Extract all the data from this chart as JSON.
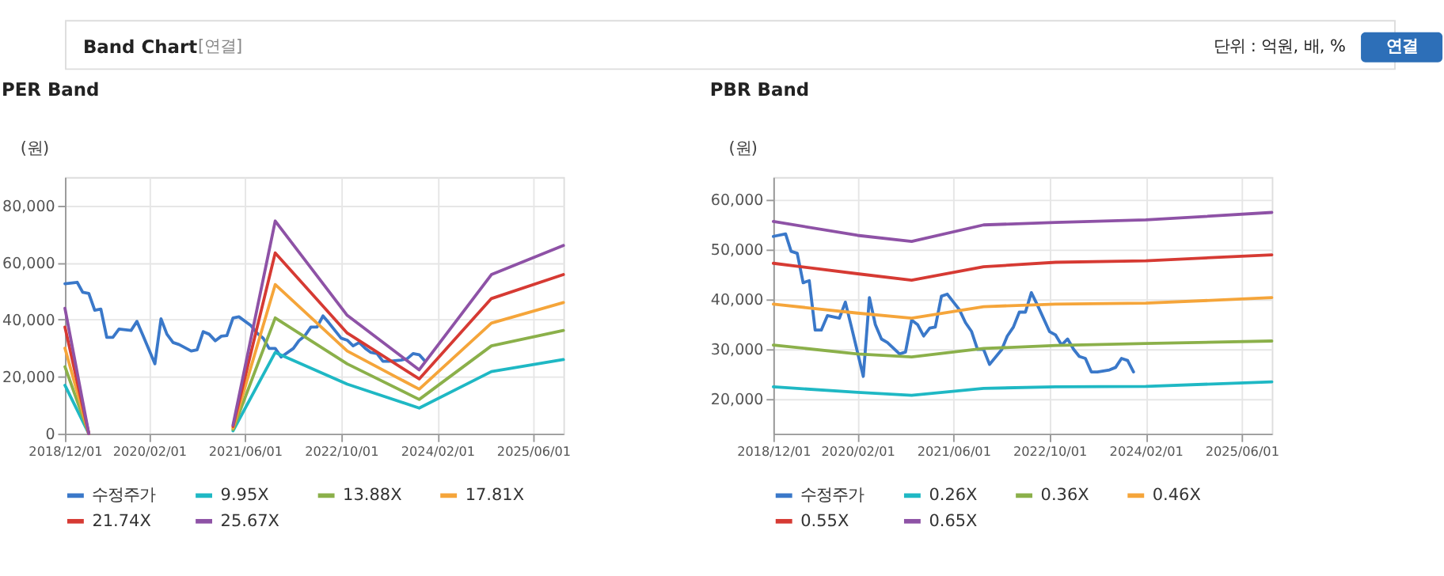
{
  "chart_data": [
    {
      "type": "line",
      "title": "PER Band",
      "ylabel": "(원)",
      "annotations": [
        "Band Chart",
        "[연결]",
        "단위 : 억원, 배, %",
        "연결"
      ],
      "xlim": [
        "2018-12-01",
        "2025-11-01"
      ],
      "xticks": [
        {
          "value": "2018-12-01",
          "label": "2018/12/01"
        },
        {
          "value": "2020-02-01",
          "label": "2020/02/01"
        },
        {
          "value": "2021-06-01",
          "label": "2021/06/01"
        },
        {
          "value": "2022-10-01",
          "label": "2022/10/01"
        },
        {
          "value": "2024-02-01",
          "label": "2024/02/01"
        },
        {
          "value": "2025-06-01",
          "label": "2025/06/01"
        }
      ],
      "ylim": [
        0,
        90000
      ],
      "yticks": [
        0,
        {
          "value": 20000,
          "label": "20,000"
        },
        {
          "value": 40000,
          "label": "40,000"
        },
        {
          "value": 60000,
          "label": "60,000"
        },
        {
          "value": 80000,
          "label": "80,000"
        }
      ],
      "grid": true,
      "legend": "bottom",
      "marker": "none",
      "line_style": "solid",
      "series": [
        {
          "name": "수정주가",
          "color": "#3a78c9",
          "x": [
            "2018-12",
            "2019-02",
            "2019-03",
            "2019-04",
            "2019-05",
            "2019-06",
            "2019-07",
            "2019-08",
            "2019-09",
            "2019-11",
            "2019-12",
            "2020-01",
            "2020-03",
            "2020-04",
            "2020-05",
            "2020-06",
            "2020-07",
            "2020-09",
            "2020-10",
            "2020-11",
            "2020-12",
            "2021-01",
            "2021-02",
            "2021-03",
            "2021-04",
            "2021-05",
            "2021-07",
            "2021-08",
            "2021-09",
            "2021-10",
            "2021-11",
            "2021-12",
            "2022-02",
            "2022-03",
            "2022-04",
            "2022-05",
            "2022-06",
            "2022-07",
            "2022-08",
            "2022-10",
            "2022-11",
            "2022-12",
            "2023-01",
            "2023-02",
            "2023-03",
            "2023-04",
            "2023-05",
            "2023-06",
            "2023-08",
            "2023-09",
            "2023-10",
            "2023-11",
            "2023-12"
          ],
          "values": [
            52600,
            53100,
            49600,
            49200,
            43300,
            43700,
            33800,
            33800,
            36700,
            36200,
            39400,
            34400,
            24500,
            40300,
            34900,
            32000,
            31300,
            29000,
            29400,
            35800,
            34900,
            32600,
            34200,
            34400,
            40600,
            41000,
            37900,
            35300,
            33500,
            29900,
            29900,
            26900,
            29900,
            32600,
            34400,
            37400,
            37400,
            41300,
            38800,
            33500,
            32800,
            30800,
            32000,
            29900,
            28500,
            28100,
            25400,
            25400,
            25800,
            26300,
            28100,
            27700,
            25400
          ]
        },
        {
          "name": "9.95X",
          "color": "#1fb8c4",
          "x": [
            "2018-12",
            "2019-04",
            "2019-05",
            "2021-04",
            "2021-11",
            "2022-11",
            "2023-11",
            "2024-11",
            "2025-11"
          ],
          "values": [
            17000,
            0,
            null,
            1000,
            28500,
            17400,
            9000,
            21800,
            26000
          ]
        },
        {
          "name": "13.88X",
          "color": "#8bb04a",
          "x": [
            "2018-12",
            "2019-04",
            "2019-05",
            "2021-04",
            "2021-11",
            "2022-11",
            "2023-11",
            "2024-11",
            "2025-11"
          ],
          "values": [
            23500,
            0,
            null,
            1500,
            40600,
            24500,
            12000,
            30800,
            36200
          ]
        },
        {
          "name": "17.81X",
          "color": "#f5a53a",
          "x": [
            "2018-12",
            "2019-04",
            "2019-05",
            "2021-04",
            "2021-11",
            "2022-11",
            "2023-11",
            "2024-11",
            "2025-11"
          ],
          "values": [
            30000,
            0,
            null,
            2000,
            52300,
            29000,
            15600,
            38800,
            46000
          ]
        },
        {
          "name": "21.74X",
          "color": "#d63a33",
          "x": [
            "2018-12",
            "2019-04",
            "2019-05",
            "2021-04",
            "2021-11",
            "2022-11",
            "2023-11",
            "2024-11",
            "2025-11"
          ],
          "values": [
            37400,
            0,
            null,
            2500,
            63400,
            35300,
            19200,
            47400,
            55800
          ]
        },
        {
          "name": "25.67X",
          "color": "#8e52a6",
          "x": [
            "2018-12",
            "2019-04",
            "2019-05",
            "2021-04",
            "2021-11",
            "2022-11",
            "2023-11",
            "2024-11",
            "2025-11"
          ],
          "values": [
            44000,
            0,
            null,
            3000,
            74600,
            41500,
            22400,
            55800,
            66000
          ]
        }
      ]
    },
    {
      "type": "line",
      "title": "PBR Band",
      "ylabel": "(원)",
      "xlim": [
        "2018-12-01",
        "2025-11-01"
      ],
      "xticks": [
        {
          "value": "2018-12-01",
          "label": "2018/12/01"
        },
        {
          "value": "2020-02-01",
          "label": "2020/02/01"
        },
        {
          "value": "2021-06-01",
          "label": "2021/06/01"
        },
        {
          "value": "2022-10-01",
          "label": "2022/10/01"
        },
        {
          "value": "2024-02-01",
          "label": "2024/02/01"
        },
        {
          "value": "2025-06-01",
          "label": "2025/06/01"
        }
      ],
      "ylim": [
        13000,
        64500
      ],
      "yticks": [
        {
          "value": 20000,
          "label": "20,000"
        },
        {
          "value": 30000,
          "label": "30,000"
        },
        {
          "value": 40000,
          "label": "40,000"
        },
        {
          "value": 50000,
          "label": "50,000"
        },
        {
          "value": 60000,
          "label": "60,000"
        }
      ],
      "grid": true,
      "legend": "bottom",
      "marker": "none",
      "line_style": "solid",
      "series": [
        {
          "name": "수정주가",
          "color": "#3a78c9",
          "x": [
            "2018-12",
            "2019-02",
            "2019-03",
            "2019-04",
            "2019-05",
            "2019-06",
            "2019-07",
            "2019-08",
            "2019-09",
            "2019-11",
            "2019-12",
            "2020-01",
            "2020-03",
            "2020-04",
            "2020-05",
            "2020-06",
            "2020-07",
            "2020-09",
            "2020-10",
            "2020-11",
            "2020-12",
            "2021-01",
            "2021-02",
            "2021-03",
            "2021-04",
            "2021-05",
            "2021-07",
            "2021-08",
            "2021-09",
            "2021-10",
            "2021-11",
            "2021-12",
            "2022-02",
            "2022-03",
            "2022-04",
            "2022-05",
            "2022-06",
            "2022-07",
            "2022-08",
            "2022-10",
            "2022-11",
            "2022-12",
            "2023-01",
            "2023-02",
            "2023-03",
            "2023-04",
            "2023-05",
            "2023-06",
            "2023-08",
            "2023-09",
            "2023-10",
            "2023-11",
            "2023-12"
          ],
          "values": [
            52600,
            53100,
            49600,
            49200,
            43300,
            43700,
            33800,
            33800,
            36700,
            36200,
            39400,
            34400,
            24500,
            40300,
            34900,
            32000,
            31300,
            29000,
            29400,
            35800,
            34900,
            32600,
            34200,
            34400,
            40600,
            41000,
            37900,
            35300,
            33500,
            29900,
            29900,
            26900,
            29900,
            32600,
            34400,
            37400,
            37400,
            41300,
            38800,
            33500,
            32800,
            30800,
            32000,
            29900,
            28500,
            28100,
            25400,
            25400,
            25800,
            26300,
            28100,
            27700,
            25400
          ]
        },
        {
          "name": "0.26X",
          "color": "#1fb8c4",
          "x": [
            "2018-12",
            "2020-02",
            "2020-11",
            "2021-11",
            "2022-11",
            "2024-02",
            "2025-11"
          ],
          "values": [
            22400,
            21300,
            20700,
            22100,
            22400,
            22500,
            23400
          ]
        },
        {
          "name": "0.36X",
          "color": "#8bb04a",
          "x": [
            "2018-12",
            "2020-02",
            "2020-11",
            "2021-11",
            "2022-11",
            "2024-02",
            "2025-11"
          ],
          "values": [
            30800,
            29000,
            28400,
            30100,
            30700,
            31100,
            31600
          ]
        },
        {
          "name": "0.46X",
          "color": "#f5a53a",
          "x": [
            "2018-12",
            "2020-02",
            "2020-11",
            "2021-11",
            "2022-11",
            "2024-02",
            "2025-11"
          ],
          "values": [
            39000,
            37200,
            36200,
            38500,
            39000,
            39200,
            40300
          ]
        },
        {
          "name": "0.55X",
          "color": "#d63a33",
          "x": [
            "2018-12",
            "2020-02",
            "2020-11",
            "2021-11",
            "2022-11",
            "2024-02",
            "2025-11"
          ],
          "values": [
            47200,
            45100,
            43800,
            46500,
            47400,
            47700,
            48900
          ]
        },
        {
          "name": "0.65X",
          "color": "#8e52a6",
          "x": [
            "2018-12",
            "2020-02",
            "2020-11",
            "2021-11",
            "2022-11",
            "2024-02",
            "2025-11"
          ],
          "values": [
            55600,
            52800,
            51600,
            54900,
            55400,
            55900,
            57400
          ]
        }
      ]
    }
  ]
}
